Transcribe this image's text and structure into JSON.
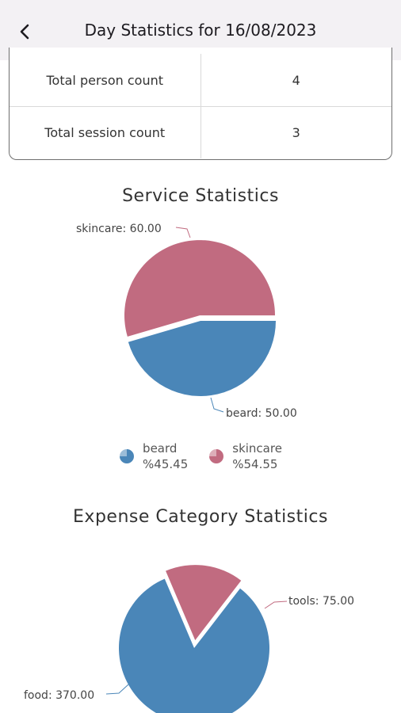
{
  "header": {
    "title": "Day Statistics for 16/08/2023",
    "back_icon": "chevron-left-icon"
  },
  "summary": {
    "rows": [
      {
        "label": "Total person count",
        "value": "4"
      },
      {
        "label": "Total session count",
        "value": "3"
      }
    ]
  },
  "colors": {
    "blue": "#4a86b8",
    "rose": "#c16b80"
  },
  "chart_data": [
    {
      "type": "pie",
      "title": "Service Statistics",
      "slices": [
        {
          "name": "beard",
          "value": 50.0,
          "label": "beard: 50.00",
          "percent": "%45.45",
          "color": "#4a86b8"
        },
        {
          "name": "skincare",
          "value": 60.0,
          "label": "skincare: 60.00",
          "percent": "%54.55",
          "color": "#c16b80"
        }
      ],
      "legend": [
        {
          "name": "beard",
          "percent": "%45.45",
          "color": "#4a86b8"
        },
        {
          "name": "skincare",
          "percent": "%54.55",
          "color": "#c16b80"
        }
      ]
    },
    {
      "type": "pie",
      "title": "Expense Category Statistics",
      "slices": [
        {
          "name": "food",
          "value": 370.0,
          "label": "food: 370.00",
          "color": "#4a86b8"
        },
        {
          "name": "tools",
          "value": 75.0,
          "label": "tools: 75.00",
          "color": "#c16b80"
        }
      ]
    }
  ]
}
